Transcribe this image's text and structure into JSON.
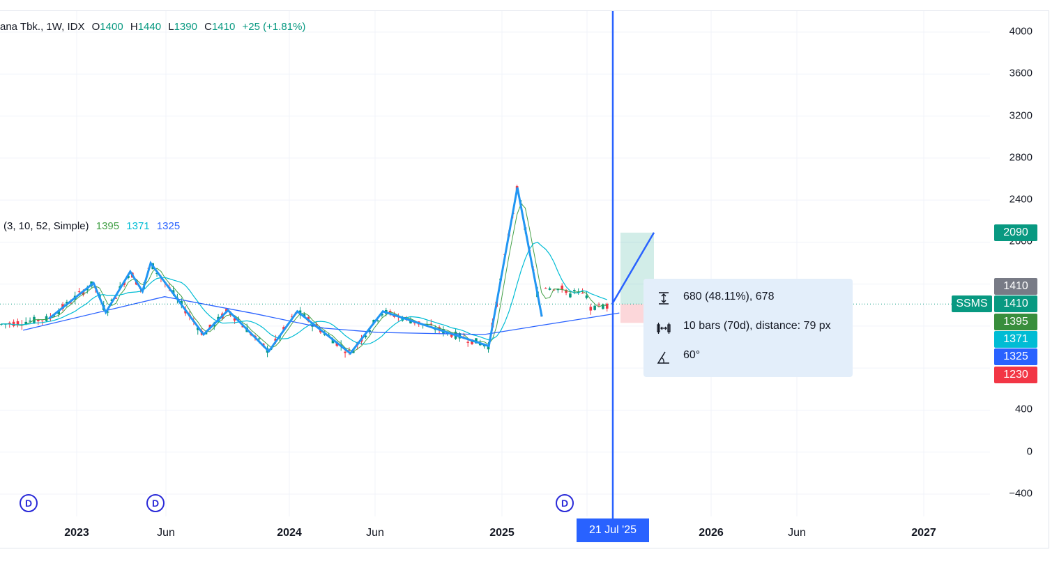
{
  "header": {
    "title": "ana Tbk., 1W, IDX",
    "ohlc": [
      {
        "key": "O",
        "value": "1400"
      },
      {
        "key": "H",
        "value": "1440"
      },
      {
        "key": "L",
        "value": "1390"
      },
      {
        "key": "C",
        "value": "1410"
      }
    ],
    "change": "+25 (+1.81%)"
  },
  "indicator": {
    "params": "(3, 10, 52, Simple)",
    "values": [
      "1395",
      "1371",
      "1325"
    ]
  },
  "colors": {
    "up": "#089981",
    "down": "#f23645",
    "ma_fast": "#43a047",
    "ma_mid": "#00bcd4",
    "ma_slow": "#2962ff",
    "zigzag": "#2196f3",
    "accent": "#2962ff",
    "tag_gray": "#787b86",
    "tag_green": "#089981",
    "tag_ma_fast": "#388e3c",
    "tag_red": "#f23645"
  },
  "y_axis": {
    "ticks": [
      "4000",
      "3600",
      "3200",
      "2800",
      "2400",
      "2000",
      "400",
      "0",
      "−400"
    ]
  },
  "price_tags": [
    {
      "value": "2090",
      "color": "#089981"
    },
    {
      "value": "1410",
      "color": "#787b86"
    },
    {
      "value": "1410",
      "color": "#089981"
    },
    {
      "value": "1395",
      "color": "#388e3c"
    },
    {
      "value": "1371",
      "color": "#00bcd4"
    },
    {
      "value": "1325",
      "color": "#2962ff"
    },
    {
      "value": "1230",
      "color": "#f23645"
    }
  ],
  "symbol_tag": "SSMS",
  "x_axis": {
    "labels": [
      {
        "text": "2023",
        "year": true
      },
      {
        "text": "Jun",
        "year": false
      },
      {
        "text": "2024",
        "year": true
      },
      {
        "text": "Jun",
        "year": false
      },
      {
        "text": "2025",
        "year": true
      },
      {
        "text": "2026",
        "year": true
      },
      {
        "text": "Jun",
        "year": false
      },
      {
        "text": "2027",
        "year": true
      }
    ],
    "cursor_date": "21 Jul '25"
  },
  "dividends": [
    "D",
    "D",
    "D"
  ],
  "measure": {
    "price_range": "680 (48.11%), 678",
    "bars_range": "10 bars (70d), distance: 79 px",
    "angle": "60°"
  },
  "chart_data": {
    "type": "candlestick",
    "interval": "1W",
    "x_range": [
      "2022-10",
      "2027-03"
    ],
    "ylim": [
      -400,
      4000
    ],
    "current_price": 1410,
    "zigzag_points": [
      [
        "2022-11-14",
        1270
      ],
      [
        "2023-01-30",
        1610
      ],
      [
        "2023-02-20",
        1330
      ],
      [
        "2023-04-03",
        1720
      ],
      [
        "2023-04-24",
        1530
      ],
      [
        "2023-05-08",
        1800
      ],
      [
        "2023-08-07",
        1120
      ],
      [
        "2023-09-18",
        1350
      ],
      [
        "2023-11-27",
        960
      ],
      [
        "2024-01-15",
        1340
      ],
      [
        "2024-04-15",
        940
      ],
      [
        "2024-06-10",
        1340
      ],
      [
        "2024-12-09",
        1010
      ],
      [
        "2025-01-27",
        2520
      ],
      [
        "2025-03-10",
        1290
      ]
    ],
    "ma_slow": [
      [
        "2022-10-01",
        1160
      ],
      [
        "2023-06-01",
        1480
      ],
      [
        "2023-11-01",
        1320
      ],
      [
        "2024-03-01",
        1180
      ],
      [
        "2024-06-01",
        1140
      ],
      [
        "2024-12-01",
        1120
      ],
      [
        "2025-03-01",
        1200
      ],
      [
        "2025-07-21",
        1325
      ]
    ],
    "measure_tool": {
      "from_price": 1410,
      "to_price": 2090,
      "stop_price": 1230,
      "bars": 10,
      "angle_deg": 60
    },
    "dividend_dates": [
      "2022-11",
      "2023-05",
      "2025-06"
    ]
  }
}
